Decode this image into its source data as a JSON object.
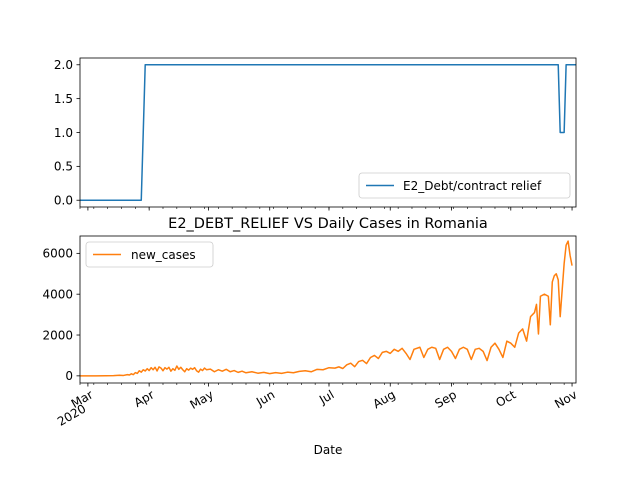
{
  "chart_data": [
    {
      "type": "line",
      "title": "",
      "xlabel": "",
      "ylabel": "",
      "ylim": [
        -0.1,
        2.1
      ],
      "yticks": [
        "0.0",
        "0.5",
        "1.0",
        "1.5",
        "2.0"
      ],
      "ytick_values": [
        0,
        0.5,
        1,
        1.5,
        2
      ],
      "legend": {
        "position": "lower-right"
      },
      "grid": false,
      "series": [
        {
          "name": "E2_Debt/contract relief",
          "color": "#1f77b4",
          "points": [
            [
              "2020-02-26",
              0
            ],
            [
              "2020-03-28",
              0
            ],
            [
              "2020-03-29",
              1
            ],
            [
              "2020-03-30",
              2
            ],
            [
              "2020-10-25",
              2
            ],
            [
              "2020-10-26",
              1
            ],
            [
              "2020-10-28",
              1
            ],
            [
              "2020-10-29",
              2
            ],
            [
              "2020-11-03",
              2
            ]
          ]
        }
      ]
    },
    {
      "type": "line",
      "title": "E2_DEBT_RELIEF VS Daily Cases in Romania",
      "xlabel": "Date",
      "ylabel": "",
      "ylim": [
        -350,
        6850
      ],
      "yticks": [
        "0",
        "2000",
        "4000",
        "6000"
      ],
      "ytick_values": [
        0,
        2000,
        4000,
        6000
      ],
      "xticks": [
        {
          "date": "2020-03-01",
          "label": "Mar",
          "sublabel": "2020"
        },
        {
          "date": "2020-04-01",
          "label": "Apr",
          "sublabel": ""
        },
        {
          "date": "2020-05-01",
          "label": "May",
          "sublabel": ""
        },
        {
          "date": "2020-06-01",
          "label": "Jun",
          "sublabel": ""
        },
        {
          "date": "2020-07-01",
          "label": "Jul",
          "sublabel": ""
        },
        {
          "date": "2020-08-01",
          "label": "Aug",
          "sublabel": ""
        },
        {
          "date": "2020-09-01",
          "label": "Sep",
          "sublabel": ""
        },
        {
          "date": "2020-10-01",
          "label": "Oct",
          "sublabel": ""
        },
        {
          "date": "2020-11-01",
          "label": "Nov",
          "sublabel": ""
        }
      ],
      "legend": {
        "position": "upper-left"
      },
      "grid": false,
      "series": [
        {
          "name": "new_cases",
          "color": "#ff7f0e",
          "points": [
            [
              "2020-02-26",
              0
            ],
            [
              "2020-03-05",
              0
            ],
            [
              "2020-03-10",
              5
            ],
            [
              "2020-03-14",
              10
            ],
            [
              "2020-03-17",
              30
            ],
            [
              "2020-03-19",
              20
            ],
            [
              "2020-03-21",
              60
            ],
            [
              "2020-03-22",
              40
            ],
            [
              "2020-03-23",
              100
            ],
            [
              "2020-03-24",
              60
            ],
            [
              "2020-03-25",
              160
            ],
            [
              "2020-03-26",
              120
            ],
            [
              "2020-03-27",
              250
            ],
            [
              "2020-03-28",
              180
            ],
            [
              "2020-03-29",
              300
            ],
            [
              "2020-03-30",
              240
            ],
            [
              "2020-03-31",
              350
            ],
            [
              "2020-04-01",
              260
            ],
            [
              "2020-04-02",
              400
            ],
            [
              "2020-04-03",
              300
            ],
            [
              "2020-04-04",
              420
            ],
            [
              "2020-04-05",
              240
            ],
            [
              "2020-04-06",
              440
            ],
            [
              "2020-04-07",
              380
            ],
            [
              "2020-04-08",
              250
            ],
            [
              "2020-04-09",
              400
            ],
            [
              "2020-04-10",
              330
            ],
            [
              "2020-04-11",
              420
            ],
            [
              "2020-04-12",
              230
            ],
            [
              "2020-04-13",
              350
            ],
            [
              "2020-04-14",
              270
            ],
            [
              "2020-04-15",
              480
            ],
            [
              "2020-04-16",
              320
            ],
            [
              "2020-04-17",
              420
            ],
            [
              "2020-04-18",
              300
            ],
            [
              "2020-04-19",
              200
            ],
            [
              "2020-04-20",
              350
            ],
            [
              "2020-04-21",
              280
            ],
            [
              "2020-04-22",
              380
            ],
            [
              "2020-04-23",
              320
            ],
            [
              "2020-04-24",
              400
            ],
            [
              "2020-04-25",
              250
            ],
            [
              "2020-04-26",
              180
            ],
            [
              "2020-04-27",
              330
            ],
            [
              "2020-04-28",
              260
            ],
            [
              "2020-04-29",
              380
            ],
            [
              "2020-04-30",
              300
            ],
            [
              "2020-05-02",
              330
            ],
            [
              "2020-05-04",
              200
            ],
            [
              "2020-05-06",
              300
            ],
            [
              "2020-05-08",
              230
            ],
            [
              "2020-05-10",
              320
            ],
            [
              "2020-05-12",
              200
            ],
            [
              "2020-05-14",
              260
            ],
            [
              "2020-05-16",
              170
            ],
            [
              "2020-05-18",
              230
            ],
            [
              "2020-05-20",
              150
            ],
            [
              "2020-05-23",
              200
            ],
            [
              "2020-05-26",
              130
            ],
            [
              "2020-05-29",
              170
            ],
            [
              "2020-06-01",
              110
            ],
            [
              "2020-06-04",
              160
            ],
            [
              "2020-06-07",
              120
            ],
            [
              "2020-06-10",
              180
            ],
            [
              "2020-06-13",
              150
            ],
            [
              "2020-06-16",
              220
            ],
            [
              "2020-06-19",
              250
            ],
            [
              "2020-06-22",
              200
            ],
            [
              "2020-06-25",
              320
            ],
            [
              "2020-06-28",
              300
            ],
            [
              "2020-07-01",
              400
            ],
            [
              "2020-07-04",
              380
            ],
            [
              "2020-07-06",
              440
            ],
            [
              "2020-07-08",
              360
            ],
            [
              "2020-07-10",
              540
            ],
            [
              "2020-07-12",
              620
            ],
            [
              "2020-07-14",
              450
            ],
            [
              "2020-07-16",
              700
            ],
            [
              "2020-07-18",
              760
            ],
            [
              "2020-07-20",
              600
            ],
            [
              "2020-07-22",
              900
            ],
            [
              "2020-07-24",
              1000
            ],
            [
              "2020-07-26",
              850
            ],
            [
              "2020-07-28",
              1150
            ],
            [
              "2020-07-30",
              1200
            ],
            [
              "2020-08-01",
              1100
            ],
            [
              "2020-08-03",
              1300
            ],
            [
              "2020-08-05",
              1200
            ],
            [
              "2020-08-07",
              1350
            ],
            [
              "2020-08-09",
              1100
            ],
            [
              "2020-08-11",
              800
            ],
            [
              "2020-08-13",
              1300
            ],
            [
              "2020-08-16",
              1400
            ],
            [
              "2020-08-18",
              900
            ],
            [
              "2020-08-20",
              1300
            ],
            [
              "2020-08-22",
              1400
            ],
            [
              "2020-08-24",
              1350
            ],
            [
              "2020-08-26",
              800
            ],
            [
              "2020-08-28",
              1300
            ],
            [
              "2020-08-30",
              1400
            ],
            [
              "2020-09-01",
              1200
            ],
            [
              "2020-09-03",
              850
            ],
            [
              "2020-09-05",
              1300
            ],
            [
              "2020-09-07",
              1400
            ],
            [
              "2020-09-09",
              1300
            ],
            [
              "2020-09-11",
              800
            ],
            [
              "2020-09-13",
              1300
            ],
            [
              "2020-09-15",
              1350
            ],
            [
              "2020-09-17",
              1200
            ],
            [
              "2020-09-19",
              750
            ],
            [
              "2020-09-21",
              1400
            ],
            [
              "2020-09-23",
              1600
            ],
            [
              "2020-09-25",
              1300
            ],
            [
              "2020-09-27",
              900
            ],
            [
              "2020-09-29",
              1700
            ],
            [
              "2020-10-01",
              1600
            ],
            [
              "2020-10-03",
              1400
            ],
            [
              "2020-10-05",
              2100
            ],
            [
              "2020-10-07",
              2300
            ],
            [
              "2020-10-09",
              1700
            ],
            [
              "2020-10-11",
              2900
            ],
            [
              "2020-10-13",
              3100
            ],
            [
              "2020-10-14",
              3500
            ],
            [
              "2020-10-15",
              2050
            ],
            [
              "2020-10-16",
              3900
            ],
            [
              "2020-10-18",
              4000
            ],
            [
              "2020-10-20",
              3900
            ],
            [
              "2020-10-21",
              2500
            ],
            [
              "2020-10-22",
              4600
            ],
            [
              "2020-10-23",
              4900
            ],
            [
              "2020-10-24",
              5000
            ],
            [
              "2020-10-25",
              4700
            ],
            [
              "2020-10-26",
              2900
            ],
            [
              "2020-10-28",
              5500
            ],
            [
              "2020-10-29",
              6400
            ],
            [
              "2020-10-30",
              6600
            ],
            [
              "2020-10-31",
              5900
            ],
            [
              "2020-11-01",
              5400
            ]
          ]
        }
      ]
    }
  ]
}
